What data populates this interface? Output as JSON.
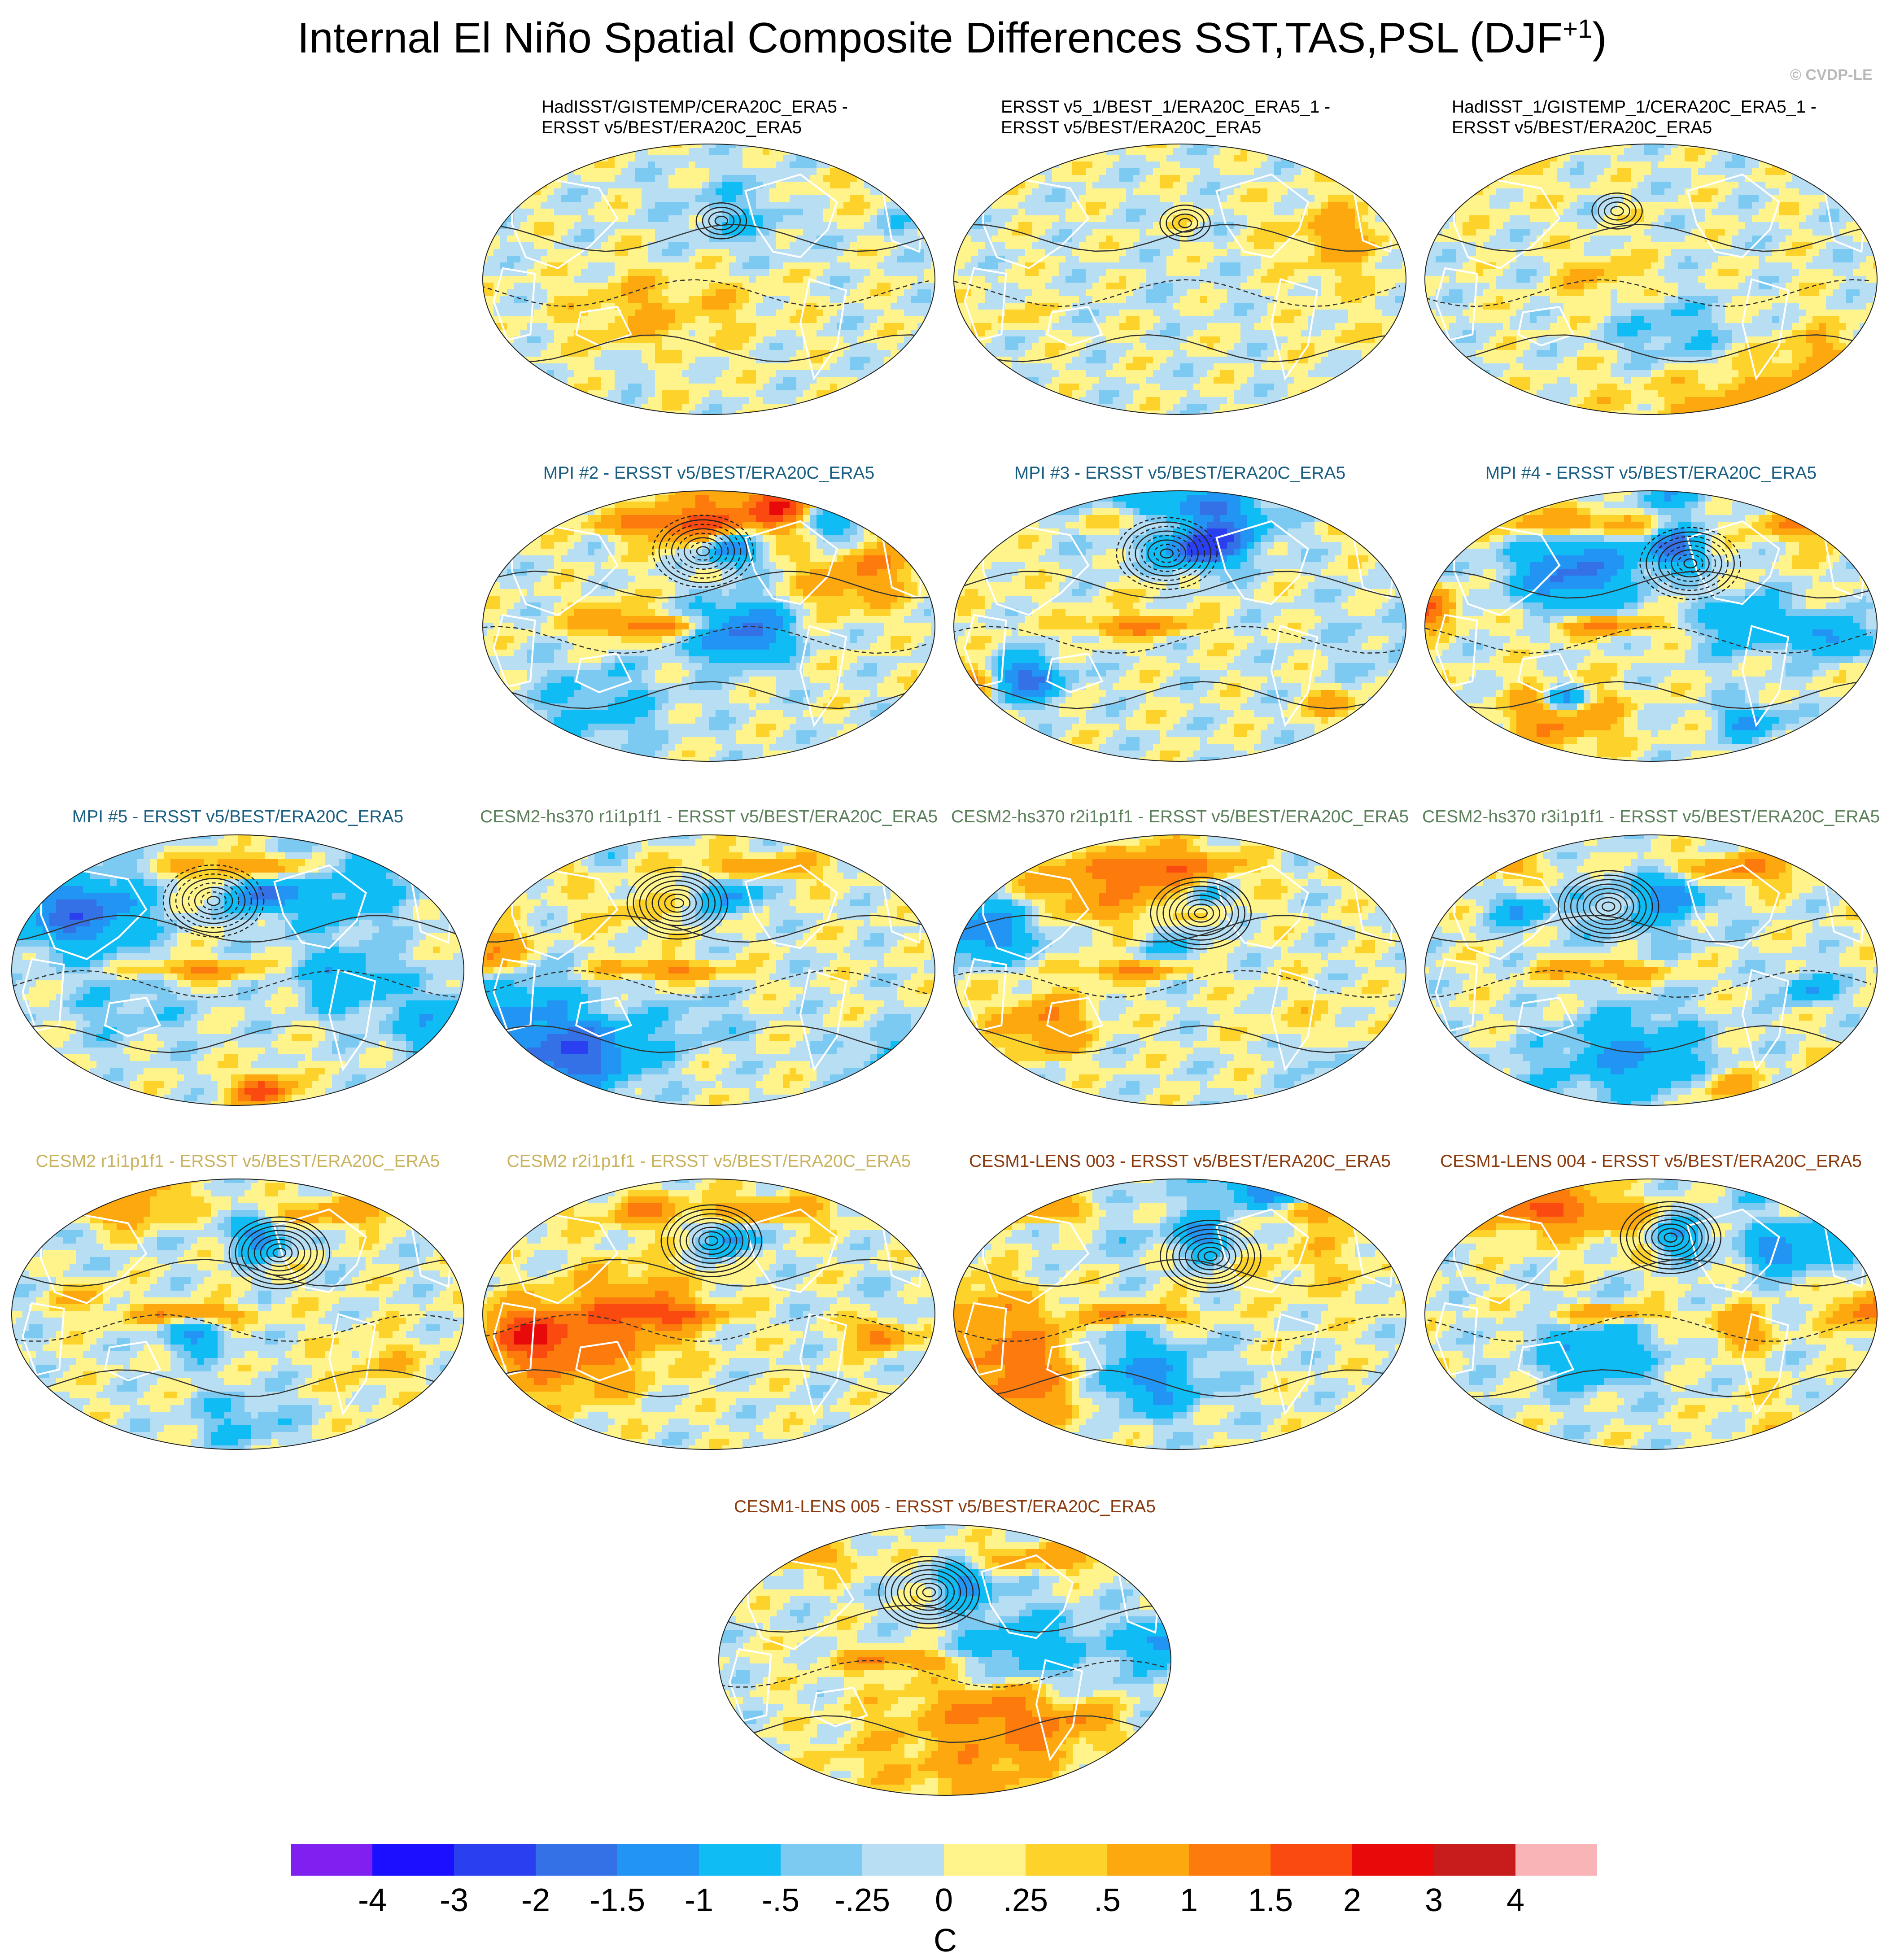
{
  "title": "Internal El Niño Spatial Composite Differences SST,TAS,PSL (DJF",
  "title_sup": "+1",
  "title_close": ")",
  "credit": "© CVDP-LE",
  "colors": {
    "obs_title": "#000000",
    "mpi_title": "#1a5e82",
    "cesm2hs_title": "#5a7f5a",
    "cesm2_title": "#c9b25e",
    "cesm1_title": "#8a3a0d"
  },
  "panels": [
    {
      "id": "obs-1",
      "line1": "HadISST/GISTEMP/CERA20C_ERA5 -",
      "line2": "ERSST v5/BEST/ERA20C_ERA5",
      "group": "obs",
      "seed": 11
    },
    {
      "id": "obs-2",
      "line1": "ERSST v5_1/BEST_1/ERA20C_ERA5_1 -",
      "line2": "ERSST v5/BEST/ERA20C_ERA5",
      "group": "obs",
      "seed": 23
    },
    {
      "id": "obs-3",
      "line1": "HadISST_1/GISTEMP_1/CERA20C_ERA5_1 -",
      "line2": "ERSST v5/BEST/ERA20C_ERA5",
      "group": "obs",
      "seed": 37
    },
    {
      "id": "mpi-2",
      "line1": "MPI #2 - ERSST v5/BEST/ERA20C_ERA5",
      "group": "mpi",
      "seed": 41
    },
    {
      "id": "mpi-3",
      "line1": "MPI #3 - ERSST v5/BEST/ERA20C_ERA5",
      "group": "mpi",
      "seed": 53
    },
    {
      "id": "mpi-4",
      "line1": "MPI #4 - ERSST v5/BEST/ERA20C_ERA5",
      "group": "mpi",
      "seed": 67
    },
    {
      "id": "mpi-5",
      "line1": "MPI #5 - ERSST v5/BEST/ERA20C_ERA5",
      "group": "mpi",
      "seed": 71
    },
    {
      "id": "cesm2hs-1",
      "line1": "CESM2-hs370 r1i1p1f1 - ERSST v5/BEST/ERA20C_ERA5",
      "group": "cesm2hs",
      "seed": 83
    },
    {
      "id": "cesm2hs-2",
      "line1": "CESM2-hs370 r2i1p1f1 - ERSST v5/BEST/ERA20C_ERA5",
      "group": "cesm2hs",
      "seed": 97
    },
    {
      "id": "cesm2hs-3",
      "line1": "CESM2-hs370 r3i1p1f1 - ERSST v5/BEST/ERA20C_ERA5",
      "group": "cesm2hs",
      "seed": 101
    },
    {
      "id": "cesm2-1",
      "line1": "CESM2 r1i1p1f1 - ERSST v5/BEST/ERA20C_ERA5",
      "group": "cesm2",
      "seed": 113
    },
    {
      "id": "cesm2-2",
      "line1": "CESM2 r2i1p1f1 - ERSST v5/BEST/ERA20C_ERA5",
      "group": "cesm2",
      "seed": 127
    },
    {
      "id": "cesm1-3",
      "line1": "CESM1-LENS 003 - ERSST v5/BEST/ERA20C_ERA5",
      "group": "cesm1",
      "seed": 131
    },
    {
      "id": "cesm1-4",
      "line1": "CESM1-LENS 004 - ERSST v5/BEST/ERA20C_ERA5",
      "group": "cesm1",
      "seed": 149
    },
    {
      "id": "cesm1-5",
      "line1": "CESM1-LENS 005 - ERSST v5/BEST/ERA20C_ERA5",
      "group": "cesm1",
      "seed": 157
    }
  ],
  "chart_data": {
    "type": "heatmap",
    "title": "Internal El Niño Spatial Composite Differences SST,TAS,PSL (DJF+1)",
    "projection": "Robinson (Pacific-centered)",
    "field_shaded": "SST/TAS composite difference",
    "field_contoured": "PSL composite difference",
    "units": "C",
    "colorbar": {
      "tick_labels": [
        "-4",
        "-3",
        "-2",
        "-1.5",
        "-1",
        "-.5",
        "-.25",
        "0",
        ".25",
        ".5",
        "1",
        "1.5",
        "2",
        "3",
        "4"
      ],
      "bins": [
        {
          "max": -4,
          "color": "#8020f0"
        },
        {
          "min": -4,
          "max": -3,
          "color": "#1a10ff"
        },
        {
          "min": -3,
          "max": -2,
          "color": "#2a40f0"
        },
        {
          "min": -2,
          "max": -1.5,
          "color": "#3470e6"
        },
        {
          "min": -1.5,
          "max": -1,
          "color": "#2294f4"
        },
        {
          "min": -1,
          "max": -0.5,
          "color": "#10bcf4"
        },
        {
          "min": -0.5,
          "max": -0.25,
          "color": "#7ccaf2"
        },
        {
          "min": -0.25,
          "max": 0,
          "color": "#b7def2"
        },
        {
          "min": 0,
          "max": 0.25,
          "color": "#fff48c"
        },
        {
          "min": 0.25,
          "max": 0.5,
          "color": "#fdd22a"
        },
        {
          "min": 0.5,
          "max": 1,
          "color": "#fca80e"
        },
        {
          "min": 1,
          "max": 1.5,
          "color": "#fd7a0c"
        },
        {
          "min": 1.5,
          "max": 2,
          "color": "#fa4a10"
        },
        {
          "min": 2,
          "max": 3,
          "color": "#e80a0a"
        },
        {
          "min": 3,
          "max": 4,
          "color": "#c81c1c"
        },
        {
          "min": 4,
          "color": "#f9b4b8"
        }
      ]
    }
  }
}
